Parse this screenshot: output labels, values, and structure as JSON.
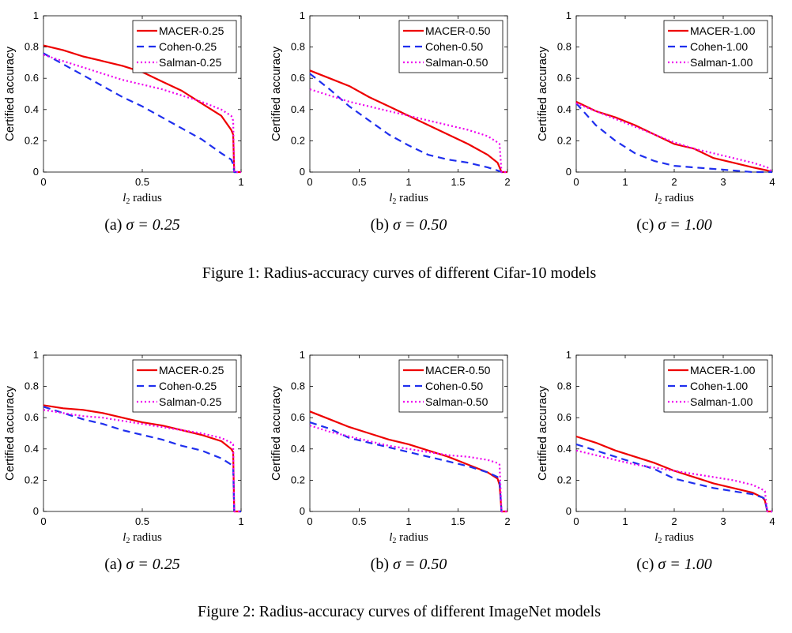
{
  "chart_data": [
    {
      "type": "line",
      "xlim": [
        0,
        1
      ],
      "ylim": [
        0,
        1
      ],
      "xticks": [
        "0",
        "0.5",
        "1"
      ],
      "yticks": [
        "0",
        "0.2",
        "0.4",
        "0.6",
        "0.8",
        "1"
      ],
      "xlabel": "l2 radius",
      "ylabel": "Certified accuracy",
      "legend": "top-right",
      "caption_label": "(a)",
      "caption_expr": "σ = 0.25",
      "series": [
        {
          "name": "MACER-0.25",
          "color": "#ee0000",
          "dash": "solid",
          "x": [
            0,
            0.1,
            0.2,
            0.3,
            0.4,
            0.5,
            0.6,
            0.7,
            0.8,
            0.9,
            0.95,
            0.96,
            0.965,
            1.0
          ],
          "y": [
            0.81,
            0.78,
            0.74,
            0.71,
            0.68,
            0.64,
            0.58,
            0.52,
            0.44,
            0.36,
            0.27,
            0.24,
            0,
            0
          ]
        },
        {
          "name": "Cohen-0.25",
          "color": "#1f2fee",
          "dash": "dash",
          "x": [
            0,
            0.1,
            0.2,
            0.3,
            0.4,
            0.5,
            0.6,
            0.7,
            0.8,
            0.9,
            0.95,
            0.96,
            0.965,
            1.0
          ],
          "y": [
            0.76,
            0.69,
            0.62,
            0.55,
            0.48,
            0.42,
            0.35,
            0.28,
            0.21,
            0.12,
            0.08,
            0.05,
            0,
            0
          ]
        },
        {
          "name": "Salman-0.25",
          "color": "#ee00ee",
          "dash": "dot",
          "x": [
            0,
            0.1,
            0.2,
            0.3,
            0.4,
            0.5,
            0.6,
            0.7,
            0.8,
            0.9,
            0.95,
            0.96,
            0.965,
            1.0
          ],
          "y": [
            0.75,
            0.71,
            0.67,
            0.63,
            0.59,
            0.56,
            0.53,
            0.49,
            0.45,
            0.4,
            0.36,
            0.33,
            0,
            0
          ]
        }
      ]
    },
    {
      "type": "line",
      "xlim": [
        0,
        2
      ],
      "ylim": [
        0,
        1
      ],
      "xticks": [
        "0",
        "0.5",
        "1",
        "1.5",
        "2"
      ],
      "yticks": [
        "0",
        "0.2",
        "0.4",
        "0.6",
        "0.8",
        "1"
      ],
      "xlabel": "l2 radius",
      "ylabel": "Certified accuracy",
      "legend": "top-right",
      "caption_label": "(b)",
      "caption_expr": "σ = 0.50",
      "series": [
        {
          "name": "MACER-0.50",
          "color": "#ee0000",
          "dash": "solid",
          "x": [
            0,
            0.2,
            0.4,
            0.6,
            0.8,
            1.0,
            1.2,
            1.4,
            1.6,
            1.8,
            1.9,
            1.92,
            1.94,
            2.0
          ],
          "y": [
            0.65,
            0.6,
            0.55,
            0.48,
            0.42,
            0.36,
            0.3,
            0.24,
            0.18,
            0.11,
            0.06,
            0.03,
            0,
            0
          ]
        },
        {
          "name": "Cohen-0.50",
          "color": "#1f2fee",
          "dash": "dash",
          "x": [
            0,
            0.2,
            0.4,
            0.6,
            0.8,
            1.0,
            1.2,
            1.4,
            1.6,
            1.8,
            1.9,
            1.92,
            1.94,
            2.0
          ],
          "y": [
            0.63,
            0.53,
            0.42,
            0.33,
            0.24,
            0.17,
            0.11,
            0.08,
            0.06,
            0.03,
            0.01,
            0.005,
            0,
            0
          ]
        },
        {
          "name": "Salman-0.50",
          "color": "#ee00ee",
          "dash": "dot",
          "x": [
            0,
            0.2,
            0.4,
            0.6,
            0.8,
            1.0,
            1.2,
            1.4,
            1.6,
            1.8,
            1.9,
            1.92,
            1.94,
            2.0
          ],
          "y": [
            0.53,
            0.49,
            0.45,
            0.42,
            0.39,
            0.36,
            0.33,
            0.3,
            0.27,
            0.23,
            0.19,
            0.18,
            0,
            0
          ]
        }
      ]
    },
    {
      "type": "line",
      "xlim": [
        0,
        4
      ],
      "ylim": [
        0,
        1
      ],
      "xticks": [
        "0",
        "1",
        "2",
        "3",
        "4"
      ],
      "yticks": [
        "0",
        "0.2",
        "0.4",
        "0.6",
        "0.8",
        "1"
      ],
      "xlabel": "l2 radius",
      "ylabel": "Certified accuracy",
      "legend": "top-right",
      "caption_label": "(c)",
      "caption_expr": "σ = 1.00",
      "series": [
        {
          "name": "MACER-1.00",
          "color": "#ee0000",
          "dash": "solid",
          "x": [
            0,
            0.4,
            0.8,
            1.2,
            1.6,
            2.0,
            2.4,
            2.8,
            3.2,
            3.6,
            3.9,
            4.0
          ],
          "y": [
            0.45,
            0.39,
            0.35,
            0.3,
            0.24,
            0.18,
            0.15,
            0.09,
            0.06,
            0.03,
            0.01,
            0
          ]
        },
        {
          "name": "Cohen-1.00",
          "color": "#1f2fee",
          "dash": "dash",
          "x": [
            0,
            0.4,
            0.8,
            1.2,
            1.6,
            2.0,
            2.4,
            2.8,
            3.2,
            3.6,
            3.9,
            4.0
          ],
          "y": [
            0.44,
            0.3,
            0.2,
            0.12,
            0.07,
            0.04,
            0.03,
            0.02,
            0.01,
            0,
            0,
            0
          ]
        },
        {
          "name": "Salman-1.00",
          "color": "#ee00ee",
          "dash": "dot",
          "x": [
            0,
            0.4,
            0.8,
            1.2,
            1.6,
            2.0,
            2.4,
            2.8,
            3.2,
            3.6,
            3.9,
            4.0
          ],
          "y": [
            0.44,
            0.39,
            0.34,
            0.29,
            0.24,
            0.19,
            0.15,
            0.12,
            0.09,
            0.06,
            0.03,
            0
          ]
        }
      ]
    },
    {
      "type": "line",
      "xlim": [
        0,
        1
      ],
      "ylim": [
        0,
        1
      ],
      "xticks": [
        "0",
        "0.5",
        "1"
      ],
      "yticks": [
        "0",
        "0.2",
        "0.4",
        "0.6",
        "0.8",
        "1"
      ],
      "xlabel": "l2 radius",
      "ylabel": "Certified accuracy",
      "legend": "top-right",
      "caption_label": "(a)",
      "caption_expr": "σ = 0.25",
      "series": [
        {
          "name": "MACER-0.25",
          "color": "#ee0000",
          "dash": "solid",
          "x": [
            0,
            0.1,
            0.2,
            0.3,
            0.4,
            0.5,
            0.6,
            0.7,
            0.8,
            0.9,
            0.95,
            0.96,
            0.965,
            1.0
          ],
          "y": [
            0.68,
            0.66,
            0.65,
            0.63,
            0.6,
            0.57,
            0.55,
            0.52,
            0.49,
            0.45,
            0.4,
            0.38,
            0,
            0
          ]
        },
        {
          "name": "Cohen-0.25",
          "color": "#1f2fee",
          "dash": "dash",
          "x": [
            0,
            0.1,
            0.2,
            0.3,
            0.4,
            0.5,
            0.6,
            0.7,
            0.8,
            0.9,
            0.95,
            0.96,
            0.965,
            1.0
          ],
          "y": [
            0.67,
            0.63,
            0.59,
            0.56,
            0.52,
            0.49,
            0.46,
            0.42,
            0.39,
            0.34,
            0.3,
            0.28,
            0,
            0
          ]
        },
        {
          "name": "Salman-0.25",
          "color": "#ee00ee",
          "dash": "dot",
          "x": [
            0,
            0.1,
            0.2,
            0.3,
            0.4,
            0.5,
            0.6,
            0.7,
            0.8,
            0.9,
            0.95,
            0.96,
            0.965,
            1.0
          ],
          "y": [
            0.65,
            0.63,
            0.61,
            0.6,
            0.58,
            0.56,
            0.54,
            0.52,
            0.5,
            0.47,
            0.44,
            0.43,
            0,
            0
          ]
        }
      ]
    },
    {
      "type": "line",
      "xlim": [
        0,
        2
      ],
      "ylim": [
        0,
        1
      ],
      "xticks": [
        "0",
        "0.5",
        "1",
        "1.5",
        "2"
      ],
      "yticks": [
        "0",
        "0.2",
        "0.4",
        "0.6",
        "0.8",
        "1"
      ],
      "xlabel": "l2 radius",
      "ylabel": "Certified accuracy",
      "legend": "top-right",
      "caption_label": "(b)",
      "caption_expr": "σ = 0.50",
      "series": [
        {
          "name": "MACER-0.50",
          "color": "#ee0000",
          "dash": "solid",
          "x": [
            0,
            0.2,
            0.4,
            0.6,
            0.8,
            1.0,
            1.2,
            1.4,
            1.6,
            1.8,
            1.9,
            1.92,
            1.94,
            2.0
          ],
          "y": [
            0.64,
            0.59,
            0.54,
            0.5,
            0.46,
            0.43,
            0.39,
            0.35,
            0.3,
            0.25,
            0.21,
            0.17,
            0,
            0
          ]
        },
        {
          "name": "Cohen-0.50",
          "color": "#1f2fee",
          "dash": "dash",
          "x": [
            0,
            0.2,
            0.4,
            0.6,
            0.8,
            1.0,
            1.2,
            1.4,
            1.6,
            1.8,
            1.9,
            1.92,
            1.94,
            2.0
          ],
          "y": [
            0.57,
            0.53,
            0.47,
            0.44,
            0.41,
            0.38,
            0.35,
            0.32,
            0.29,
            0.25,
            0.22,
            0.2,
            0,
            0
          ]
        },
        {
          "name": "Salman-0.50",
          "color": "#ee00ee",
          "dash": "dot",
          "x": [
            0,
            0.2,
            0.4,
            0.6,
            0.8,
            1.0,
            1.2,
            1.4,
            1.6,
            1.8,
            1.9,
            1.92,
            1.94,
            2.0
          ],
          "y": [
            0.55,
            0.51,
            0.48,
            0.45,
            0.42,
            0.4,
            0.38,
            0.36,
            0.35,
            0.33,
            0.31,
            0.3,
            0,
            0
          ]
        }
      ]
    },
    {
      "type": "line",
      "xlim": [
        0,
        4
      ],
      "ylim": [
        0,
        1
      ],
      "xticks": [
        "0",
        "1",
        "2",
        "3",
        "4"
      ],
      "yticks": [
        "0",
        "0.2",
        "0.4",
        "0.6",
        "0.8",
        "1"
      ],
      "xlabel": "l2 radius",
      "ylabel": "Certified accuracy",
      "legend": "top-right",
      "caption_label": "(c)",
      "caption_expr": "σ = 1.00",
      "series": [
        {
          "name": "MACER-1.00",
          "color": "#ee0000",
          "dash": "solid",
          "x": [
            0,
            0.4,
            0.8,
            1.2,
            1.6,
            2.0,
            2.4,
            2.8,
            3.2,
            3.6,
            3.8,
            3.85,
            3.9,
            4.0
          ],
          "y": [
            0.48,
            0.44,
            0.39,
            0.35,
            0.31,
            0.26,
            0.22,
            0.18,
            0.15,
            0.12,
            0.09,
            0.07,
            0,
            0
          ]
        },
        {
          "name": "Cohen-1.00",
          "color": "#1f2fee",
          "dash": "dash",
          "x": [
            0,
            0.4,
            0.8,
            1.2,
            1.6,
            2.0,
            2.4,
            2.8,
            3.2,
            3.6,
            3.8,
            3.85,
            3.9,
            4.0
          ],
          "y": [
            0.43,
            0.39,
            0.35,
            0.31,
            0.27,
            0.21,
            0.18,
            0.15,
            0.13,
            0.11,
            0.09,
            0.08,
            0,
            0
          ]
        },
        {
          "name": "Salman-1.00",
          "color": "#ee00ee",
          "dash": "dot",
          "x": [
            0,
            0.4,
            0.8,
            1.2,
            1.6,
            2.0,
            2.4,
            2.8,
            3.2,
            3.6,
            3.8,
            3.85,
            3.9,
            4.0
          ],
          "y": [
            0.39,
            0.36,
            0.33,
            0.3,
            0.28,
            0.26,
            0.24,
            0.22,
            0.2,
            0.17,
            0.14,
            0.13,
            0,
            0
          ]
        }
      ]
    }
  ],
  "figure_captions": [
    "Figure 1: Radius-accuracy curves of different Cifar-10 models",
    "Figure 2: Radius-accuracy curves of different ImageNet models"
  ]
}
